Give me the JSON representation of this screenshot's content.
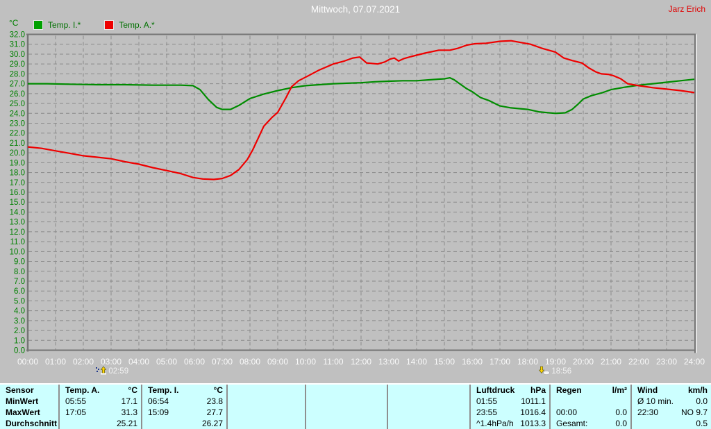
{
  "header": {
    "title": "Mittwoch, 07.07.2021",
    "owner": "Jarz Erich"
  },
  "colors": {
    "background": "#c0c0c0",
    "grid": "#8a8a8a",
    "border": "#757575",
    "border_highlight": "#efefef",
    "y_labels": "#008000",
    "x_labels": "#fafafa",
    "table_bg": "#ccffff",
    "owner_text": "#e00000",
    "temp_i": "#008c00",
    "temp_a": "#ee0000"
  },
  "legend": [
    {
      "label": "Temp. I.*",
      "color": "#00a000",
      "text_color": "#007000"
    },
    {
      "label": "Temp. A.*",
      "color": "#ee0000",
      "text_color": "#007000"
    }
  ],
  "chart_data": {
    "type": "line",
    "title": "Mittwoch, 07.07.2021",
    "xlabel": "",
    "ylabel": "°C",
    "xlim": [
      0,
      24
    ],
    "ylim": [
      0,
      32
    ],
    "y_step": 1.0,
    "grid": "dashed",
    "legend_position": "top-left",
    "x_tick_labels": [
      "00:00",
      "01:00",
      "02:00",
      "03:00",
      "04:00",
      "05:00",
      "06:00",
      "07:00",
      "08:00",
      "09:00",
      "10:00",
      "11:00",
      "12:00",
      "13:00",
      "14:00",
      "15:00",
      "16:00",
      "17:00",
      "18:00",
      "19:00",
      "20:00",
      "21:00",
      "22:00",
      "23:00",
      "24:00"
    ],
    "y_tick_labels": [
      "32.0",
      "31.0",
      "30.0",
      "29.0",
      "28.0",
      "27.0",
      "26.0",
      "25.0",
      "24.0",
      "23.0",
      "22.0",
      "21.0",
      "20.0",
      "19.0",
      "18.0",
      "17.0",
      "16.0",
      "15.0",
      "14.0",
      "13.0",
      "12.0",
      "11.0",
      "10.0",
      "9.0",
      "8.0",
      "7.0",
      "6.0",
      "5.0",
      "4.0",
      "3.0",
      "2.0",
      "1.0",
      "0.0"
    ],
    "series": [
      {
        "name": "Temp. I.*",
        "color": "#008c00",
        "points": [
          [
            0,
            27.0
          ],
          [
            0.7,
            27.0
          ],
          [
            1.5,
            26.95
          ],
          [
            2.5,
            26.9
          ],
          [
            3.5,
            26.9
          ],
          [
            4.5,
            26.85
          ],
          [
            5.5,
            26.85
          ],
          [
            5.95,
            26.8
          ],
          [
            6.2,
            26.4
          ],
          [
            6.5,
            25.4
          ],
          [
            6.8,
            24.6
          ],
          [
            7.0,
            24.4
          ],
          [
            7.3,
            24.4
          ],
          [
            7.6,
            24.8
          ],
          [
            8.0,
            25.5
          ],
          [
            8.5,
            25.95
          ],
          [
            9.0,
            26.3
          ],
          [
            9.5,
            26.6
          ],
          [
            10.0,
            26.8
          ],
          [
            10.5,
            26.9
          ],
          [
            11.0,
            27.0
          ],
          [
            11.5,
            27.05
          ],
          [
            12.0,
            27.1
          ],
          [
            12.5,
            27.2
          ],
          [
            13.0,
            27.25
          ],
          [
            13.5,
            27.3
          ],
          [
            14.0,
            27.3
          ],
          [
            14.5,
            27.4
          ],
          [
            15.0,
            27.5
          ],
          [
            15.2,
            27.6
          ],
          [
            15.35,
            27.4
          ],
          [
            15.55,
            27.0
          ],
          [
            15.8,
            26.5
          ],
          [
            16.0,
            26.2
          ],
          [
            16.3,
            25.6
          ],
          [
            16.6,
            25.3
          ],
          [
            17.0,
            24.75
          ],
          [
            17.4,
            24.55
          ],
          [
            18.0,
            24.4
          ],
          [
            18.4,
            24.15
          ],
          [
            19.0,
            24.0
          ],
          [
            19.35,
            24.05
          ],
          [
            19.6,
            24.4
          ],
          [
            19.8,
            24.9
          ],
          [
            20.0,
            25.45
          ],
          [
            20.3,
            25.8
          ],
          [
            20.7,
            26.1
          ],
          [
            21.0,
            26.4
          ],
          [
            21.5,
            26.65
          ],
          [
            22.0,
            26.85
          ],
          [
            22.5,
            27.0
          ],
          [
            23.0,
            27.15
          ],
          [
            23.5,
            27.3
          ],
          [
            24.0,
            27.45
          ]
        ]
      },
      {
        "name": "Temp. A.*",
        "color": "#ee0000",
        "points": [
          [
            0,
            20.6
          ],
          [
            0.5,
            20.45
          ],
          [
            1.0,
            20.2
          ],
          [
            1.5,
            19.95
          ],
          [
            2.0,
            19.7
          ],
          [
            2.5,
            19.55
          ],
          [
            3.0,
            19.4
          ],
          [
            3.5,
            19.1
          ],
          [
            4.0,
            18.85
          ],
          [
            4.5,
            18.5
          ],
          [
            5.0,
            18.2
          ],
          [
            5.5,
            17.9
          ],
          [
            5.95,
            17.5
          ],
          [
            6.3,
            17.35
          ],
          [
            6.7,
            17.3
          ],
          [
            7.0,
            17.4
          ],
          [
            7.3,
            17.7
          ],
          [
            7.6,
            18.3
          ],
          [
            7.9,
            19.3
          ],
          [
            8.1,
            20.3
          ],
          [
            8.5,
            22.7
          ],
          [
            8.8,
            23.6
          ],
          [
            9.0,
            24.1
          ],
          [
            9.3,
            25.6
          ],
          [
            9.5,
            26.7
          ],
          [
            9.75,
            27.3
          ],
          [
            10.1,
            27.8
          ],
          [
            10.5,
            28.4
          ],
          [
            11.0,
            29.0
          ],
          [
            11.4,
            29.3
          ],
          [
            11.7,
            29.6
          ],
          [
            11.95,
            29.7
          ],
          [
            12.2,
            29.1
          ],
          [
            12.6,
            29.0
          ],
          [
            12.85,
            29.2
          ],
          [
            13.05,
            29.5
          ],
          [
            13.2,
            29.6
          ],
          [
            13.35,
            29.3
          ],
          [
            13.55,
            29.55
          ],
          [
            13.8,
            29.75
          ],
          [
            14.3,
            30.1
          ],
          [
            14.8,
            30.4
          ],
          [
            15.2,
            30.4
          ],
          [
            15.5,
            30.6
          ],
          [
            15.8,
            30.9
          ],
          [
            16.1,
            31.05
          ],
          [
            16.5,
            31.1
          ],
          [
            17.0,
            31.3
          ],
          [
            17.4,
            31.35
          ],
          [
            17.8,
            31.15
          ],
          [
            18.1,
            31.0
          ],
          [
            18.5,
            30.6
          ],
          [
            19.0,
            30.2
          ],
          [
            19.3,
            29.6
          ],
          [
            19.6,
            29.35
          ],
          [
            19.95,
            29.1
          ],
          [
            20.2,
            28.6
          ],
          [
            20.45,
            28.2
          ],
          [
            20.65,
            28.0
          ],
          [
            20.9,
            27.95
          ],
          [
            21.1,
            27.8
          ],
          [
            21.35,
            27.5
          ],
          [
            21.6,
            27.0
          ],
          [
            21.8,
            26.9
          ],
          [
            22.0,
            26.8
          ],
          [
            22.5,
            26.6
          ],
          [
            23.0,
            26.45
          ],
          [
            23.5,
            26.3
          ],
          [
            24.0,
            26.1
          ]
        ]
      }
    ],
    "markers": [
      {
        "time": "02:59",
        "hour": 2.983,
        "icon": "sunrise-icon"
      },
      {
        "time": "18:56",
        "hour": 18.933,
        "icon": "sunset-icon"
      }
    ]
  },
  "table": {
    "row_headers": [
      "Sensor",
      "MinWert",
      "MaxWert",
      "Durchschnitt"
    ],
    "columns": [
      {
        "header": "Temp. A.",
        "unit": "°C",
        "rows": [
          {
            "l": "05:55",
            "r": "17.1"
          },
          {
            "l": "17:05",
            "r": "31.3"
          },
          {
            "l": "",
            "r": "25.21"
          }
        ]
      },
      {
        "header": "Temp. I.",
        "unit": "°C",
        "rows": [
          {
            "l": "06:54",
            "r": "23.8"
          },
          {
            "l": "15:09",
            "r": "27.7"
          },
          {
            "l": "",
            "r": "26.27"
          }
        ]
      },
      {
        "header": "",
        "unit": "",
        "rows": [
          {
            "l": "",
            "r": ""
          },
          {
            "l": "",
            "r": ""
          },
          {
            "l": "",
            "r": ""
          }
        ]
      },
      {
        "header": "",
        "unit": "",
        "rows": [
          {
            "l": "",
            "r": ""
          },
          {
            "l": "",
            "r": ""
          },
          {
            "l": "",
            "r": ""
          }
        ]
      },
      {
        "header": "",
        "unit": "",
        "rows": [
          {
            "l": "",
            "r": ""
          },
          {
            "l": "",
            "r": ""
          },
          {
            "l": "",
            "r": ""
          }
        ]
      },
      {
        "header": "Luftdruck",
        "unit": "hPa",
        "rows": [
          {
            "l": "01:55",
            "r": "1011.1"
          },
          {
            "l": "23:55",
            "r": "1016.4"
          },
          {
            "l": "^1.4hPa/h",
            "r": "1013.3"
          }
        ]
      },
      {
        "header": "Regen",
        "unit": "l/m²",
        "rows": [
          {
            "l": "",
            "r": ""
          },
          {
            "l": "00:00",
            "r": "0.0"
          },
          {
            "l": "Gesamt:",
            "r": "0.0"
          }
        ]
      },
      {
        "header": "Wind",
        "unit": "km/h",
        "rows": [
          {
            "l": "Ø 10 min.",
            "r": "0.0"
          },
          {
            "l": "22:30",
            "r": "NO 9.7"
          },
          {
            "l": "",
            "r": "0.5"
          }
        ]
      }
    ]
  }
}
